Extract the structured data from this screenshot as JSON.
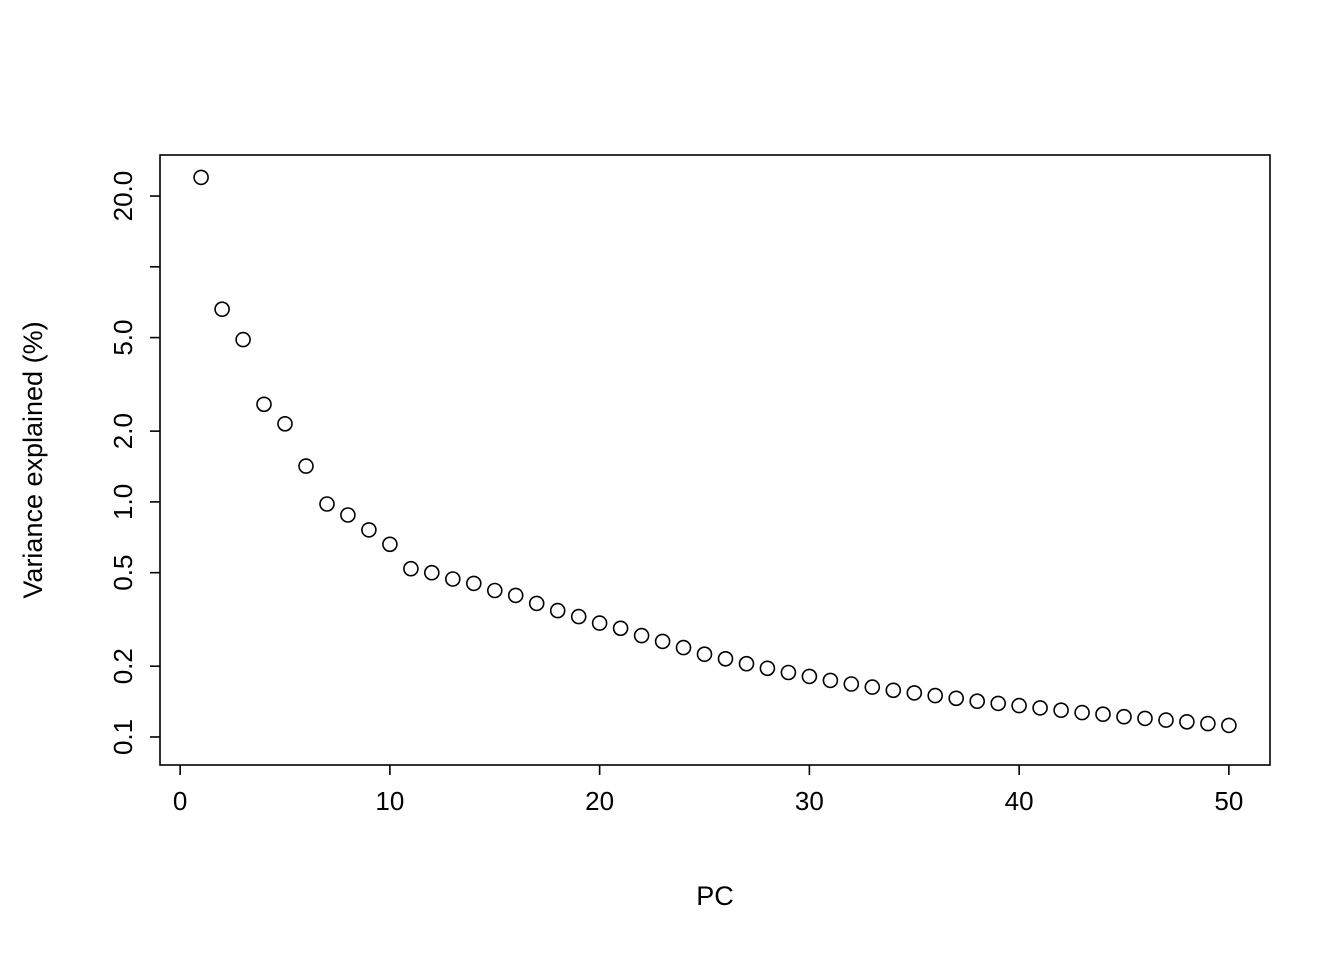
{
  "figure": {
    "background": "#ffffff",
    "frame_color": "#000000"
  },
  "chart_data": {
    "type": "scatter",
    "title": "",
    "xlabel": "PC",
    "ylabel": "Variance explained (%)",
    "x_scale": "linear",
    "y_scale": "log",
    "grid": "off",
    "legend": "none",
    "xlim": [
      -0.96,
      51.96
    ],
    "ylim": [
      0.076,
      29.9
    ],
    "x_ticks": [
      {
        "value": 0,
        "label": "0"
      },
      {
        "value": 10,
        "label": "10"
      },
      {
        "value": 20,
        "label": "20"
      },
      {
        "value": 30,
        "label": "30"
      },
      {
        "value": 40,
        "label": "40"
      },
      {
        "value": 50,
        "label": "50"
      }
    ],
    "y_ticks": [
      {
        "value": 20.0,
        "label": "20.0"
      },
      {
        "value": 10.0,
        "label": ""
      },
      {
        "value": 5.0,
        "label": "5.0"
      },
      {
        "value": 2.0,
        "label": "2.0"
      },
      {
        "value": 1.0,
        "label": "1.0"
      },
      {
        "value": 0.5,
        "label": "0.5"
      },
      {
        "value": 0.2,
        "label": "0.2"
      },
      {
        "value": 0.1,
        "label": "0.1"
      }
    ],
    "marker": {
      "shape": "circle-open",
      "radius": 7,
      "stroke": "#000000",
      "stroke_width": 1.6,
      "fill": "none"
    },
    "x": [
      1,
      2,
      3,
      4,
      5,
      6,
      7,
      8,
      9,
      10,
      11,
      12,
      13,
      14,
      15,
      16,
      17,
      18,
      19,
      20,
      21,
      22,
      23,
      24,
      25,
      26,
      27,
      28,
      29,
      30,
      31,
      32,
      33,
      34,
      35,
      36,
      37,
      38,
      39,
      40,
      41,
      42,
      43,
      44,
      45,
      46,
      47,
      48,
      49,
      50
    ],
    "y": [
      24,
      6.6,
      4.9,
      2.6,
      2.15,
      1.42,
      0.98,
      0.88,
      0.76,
      0.66,
      0.52,
      0.5,
      0.47,
      0.45,
      0.42,
      0.4,
      0.37,
      0.345,
      0.325,
      0.305,
      0.29,
      0.27,
      0.255,
      0.24,
      0.225,
      0.215,
      0.205,
      0.196,
      0.188,
      0.181,
      0.174,
      0.168,
      0.163,
      0.158,
      0.154,
      0.15,
      0.146,
      0.142,
      0.139,
      0.136,
      0.133,
      0.13,
      0.127,
      0.125,
      0.122,
      0.12,
      0.118,
      0.116,
      0.114,
      0.112
    ]
  }
}
